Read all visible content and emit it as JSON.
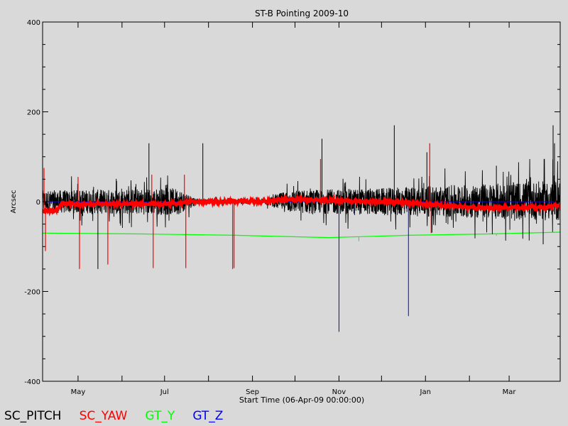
{
  "chart_data": {
    "type": "line",
    "title": "ST-B Pointing 2009-10",
    "xlabel": "Start Time (06-Apr-09 00:00:00)",
    "ylabel": "Arcsec",
    "ylim": [
      -400,
      400
    ],
    "yticks": [
      -400,
      -200,
      0,
      200,
      400
    ],
    "xlim": [
      "2009-04-06",
      "2010-04-06"
    ],
    "xtick_labels": [
      {
        "label": "May",
        "date": "2009-05-01"
      },
      {
        "label": "Jul",
        "date": "2009-07-01"
      },
      {
        "label": "Sep",
        "date": "2009-09-01"
      },
      {
        "label": "Nov",
        "date": "2009-11-01"
      },
      {
        "label": "Jan",
        "date": "2010-01-01"
      },
      {
        "label": "Mar",
        "date": "2010-03-01"
      }
    ],
    "minor_tick_dates": [
      "2009-06-01",
      "2009-08-01",
      "2009-10-01",
      "2009-12-01",
      "2010-02-01"
    ],
    "series": [
      {
        "name": "SC_PITCH",
        "color": "#000000",
        "baseline": [
          {
            "date": "2009-04-06",
            "value": 0
          },
          {
            "date": "2009-07-20",
            "value": 0
          },
          {
            "date": "2009-09-10",
            "value": 0
          },
          {
            "date": "2009-12-01",
            "value": 0
          },
          {
            "date": "2010-04-06",
            "value": 2
          }
        ],
        "noise_envelope": [
          {
            "date": "2009-04-06",
            "value": 25
          },
          {
            "date": "2009-07-10",
            "value": 30
          },
          {
            "date": "2009-07-25",
            "value": 5
          },
          {
            "date": "2009-09-10",
            "value": 5
          },
          {
            "date": "2009-09-25",
            "value": 25
          },
          {
            "date": "2009-12-01",
            "value": 30
          },
          {
            "date": "2010-04-06",
            "value": 45
          }
        ],
        "spikes": [
          {
            "date": "2009-05-15",
            "value": -150
          },
          {
            "date": "2009-06-20",
            "value": 130
          },
          {
            "date": "2009-07-28",
            "value": 130
          },
          {
            "date": "2009-10-20",
            "value": 140
          },
          {
            "date": "2009-12-10",
            "value": 170
          },
          {
            "date": "2010-01-02",
            "value": 110
          },
          {
            "date": "2010-02-20",
            "value": 80
          },
          {
            "date": "2010-03-25",
            "value": -95
          },
          {
            "date": "2010-04-01",
            "value": 170
          },
          {
            "date": "2010-04-02",
            "value": 130
          }
        ]
      },
      {
        "name": "SC_YAW",
        "color": "#ff0000",
        "baseline": [
          {
            "date": "2009-04-06",
            "value": -22
          },
          {
            "date": "2009-04-15",
            "value": -20
          },
          {
            "date": "2009-04-20",
            "value": -5
          },
          {
            "date": "2009-07-01",
            "value": -5
          },
          {
            "date": "2009-07-20",
            "value": 0
          },
          {
            "date": "2009-09-10",
            "value": 0
          },
          {
            "date": "2009-09-25",
            "value": 5
          },
          {
            "date": "2009-12-01",
            "value": 0
          },
          {
            "date": "2010-01-15",
            "value": -8
          },
          {
            "date": "2010-02-10",
            "value": -15
          },
          {
            "date": "2010-03-20",
            "value": -12
          },
          {
            "date": "2010-04-06",
            "value": -8
          }
        ],
        "spikes": [
          {
            "date": "2009-04-07",
            "value": 75
          },
          {
            "date": "2009-04-08",
            "value": -110
          },
          {
            "date": "2009-05-01",
            "value": 55
          },
          {
            "date": "2009-05-02",
            "value": -150
          },
          {
            "date": "2009-05-22",
            "value": -140
          },
          {
            "date": "2009-06-22",
            "value": 60
          },
          {
            "date": "2009-06-23",
            "value": -148
          },
          {
            "date": "2009-07-15",
            "value": 60
          },
          {
            "date": "2009-07-16",
            "value": -148
          },
          {
            "date": "2009-08-18",
            "value": -150
          },
          {
            "date": "2009-08-19",
            "value": -148
          },
          {
            "date": "2009-10-19",
            "value": 95
          },
          {
            "date": "2010-01-04",
            "value": 130
          },
          {
            "date": "2010-01-05",
            "value": -70
          }
        ]
      },
      {
        "name": "GT_Y",
        "color": "#00ff00",
        "points": [
          {
            "date": "2009-04-06",
            "value": -70
          },
          {
            "date": "2009-06-15",
            "value": -72
          },
          {
            "date": "2009-08-20",
            "value": -75
          },
          {
            "date": "2009-10-25",
            "value": -80
          },
          {
            "date": "2009-12-20",
            "value": -75
          },
          {
            "date": "2010-02-15",
            "value": -72
          },
          {
            "date": "2010-04-06",
            "value": -68
          }
        ],
        "spikes": [
          {
            "date": "2009-11-15",
            "value": -80
          },
          {
            "date": "2010-02-20",
            "value": -68
          }
        ]
      },
      {
        "name": "GT_Z",
        "color": "#0000ff",
        "points": [
          {
            "date": "2009-04-06",
            "value": 0
          },
          {
            "date": "2010-04-06",
            "value": 0
          }
        ],
        "spikes": [
          {
            "date": "2009-11-01",
            "value": -290
          },
          {
            "date": "2009-12-20",
            "value": -255
          },
          {
            "date": "2009-11-12",
            "value": -30
          },
          {
            "date": "2009-10-25",
            "value": -20
          }
        ]
      }
    ]
  },
  "legend": [
    {
      "label": "SC_PITCH",
      "color": "#000000"
    },
    {
      "label": "SC_YAW",
      "color": "#ff0000"
    },
    {
      "label": "GT_Y",
      "color": "#00ff00"
    },
    {
      "label": "GT_Z",
      "color": "#0000ff"
    }
  ]
}
